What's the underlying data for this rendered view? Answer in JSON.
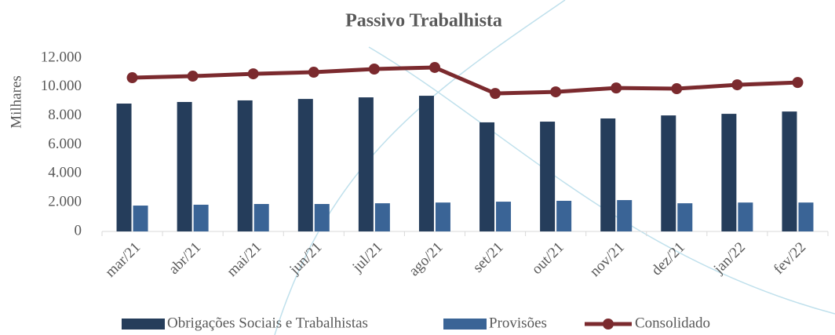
{
  "chart_data": {
    "type": "bar-line",
    "title": "Passivo Trabalhista",
    "y_label": "Milhares",
    "categories": [
      "mar/21",
      "abr/21",
      "mai/21",
      "jun/21",
      "jul/21",
      "ago/21",
      "set/21",
      "out/21",
      "nov/21",
      "dez/21",
      "jan/22",
      "fev/22"
    ],
    "series": [
      {
        "name": "Obrigações Sociais e Trabalhistas",
        "type": "bar",
        "color": "#253d5b",
        "values": [
          8850,
          8960,
          9070,
          9170,
          9280,
          9390,
          7550,
          7600,
          7820,
          8030,
          8140,
          8300
        ]
      },
      {
        "name": "Provisões",
        "type": "bar",
        "color": "#3a6496",
        "values": [
          1790,
          1850,
          1900,
          1900,
          1950,
          2000,
          2060,
          2120,
          2170,
          1950,
          2000,
          2000
        ]
      },
      {
        "name": "Consolidado",
        "type": "line",
        "color": "#7b2a2e",
        "values": [
          10640,
          10750,
          10910,
          11020,
          11240,
          11350,
          9550,
          9660,
          9930,
          9880,
          10150,
          10310
        ]
      }
    ],
    "ylim": [
      0,
      12000
    ],
    "yticks": [
      0,
      {
        "value": 2000,
        "label": "2.000"
      },
      {
        "value": 4000,
        "label": "4.000"
      },
      {
        "value": 6000,
        "label": "6.000"
      },
      {
        "value": 8000,
        "label": "8.000"
      },
      {
        "value": 10000,
        "label": "10.000"
      },
      {
        "value": 12000,
        "label": "12.000"
      }
    ],
    "legend": "bottom"
  }
}
